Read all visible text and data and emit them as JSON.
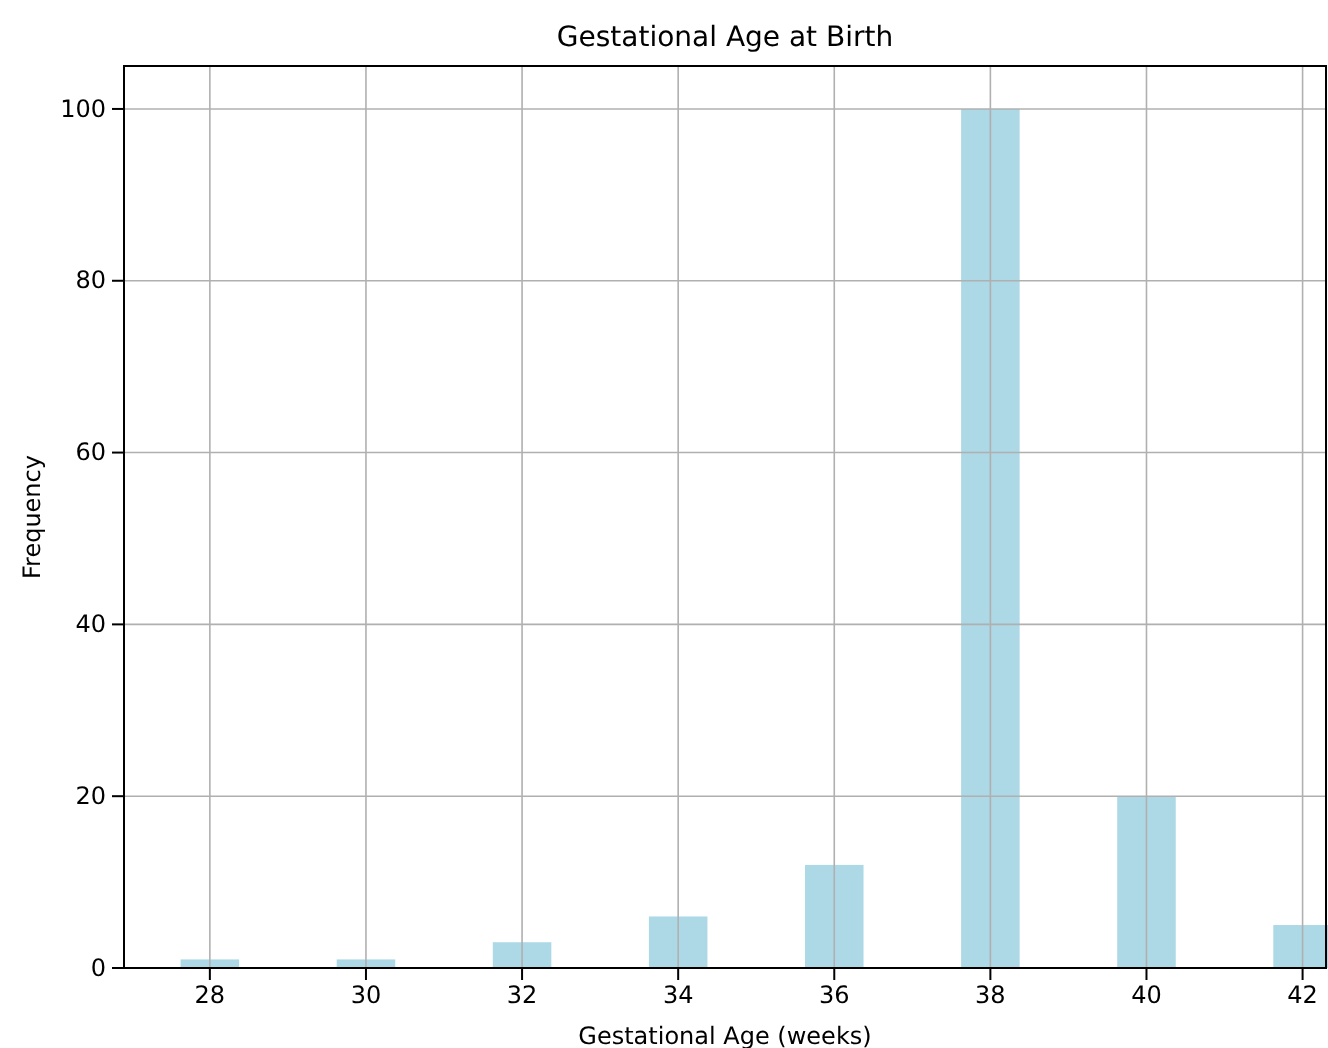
{
  "chart_data": {
    "type": "bar",
    "title": "Gestational Age at Birth",
    "xlabel": "Gestational Age (weeks)",
    "ylabel": "Frequency",
    "x": [
      28,
      30,
      32,
      34,
      36,
      38,
      40,
      42
    ],
    "values": [
      1,
      1,
      3,
      6,
      12,
      100,
      20,
      5
    ],
    "color": "#add8e6",
    "xlim": [
      26.9,
      42.3
    ],
    "xticks": [
      28,
      30,
      32,
      34,
      36,
      38,
      40,
      42
    ],
    "ylim": [
      0,
      105
    ],
    "yticks": [
      0,
      20,
      40,
      60,
      80,
      100
    ],
    "grid": true
  }
}
